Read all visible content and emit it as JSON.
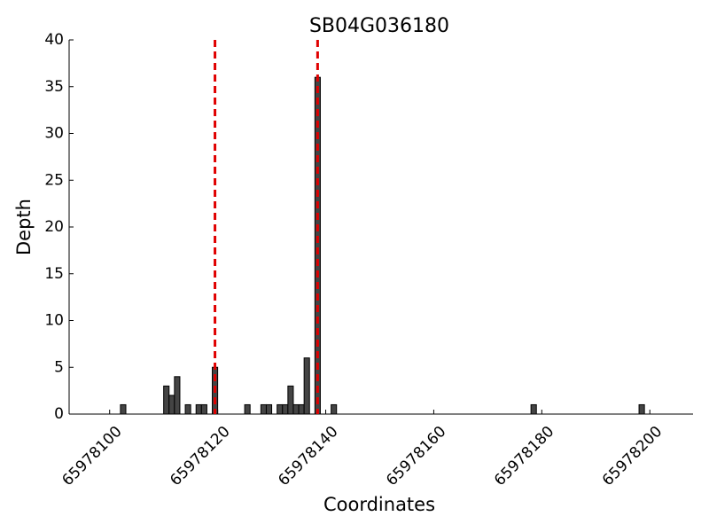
{
  "chart_data": {
    "type": "bar",
    "title": "SB04G036180",
    "x_label": "Coordinates",
    "y_label": "Depth",
    "x": [
      65978102,
      65978110,
      65978111,
      65978112,
      65978114,
      65978116,
      65978117,
      65978119,
      65978125,
      65978128,
      65978129,
      65978131,
      65978132,
      65978133,
      65978134,
      65978135,
      65978136,
      65978138,
      65978141,
      65978178,
      65978198
    ],
    "values": [
      1,
      3,
      2,
      4,
      1,
      1,
      1,
      5,
      1,
      1,
      1,
      1,
      1,
      3,
      1,
      1,
      6,
      36,
      1,
      1,
      1
    ],
    "color": "#444444",
    "vlines": [
      65978119.5,
      65978138.5
    ],
    "vline_color": "#e00000",
    "xlim": [
      65978092.5,
      65978208
    ],
    "xticks": [
      65978100,
      65978120,
      65978140,
      65978160,
      65978180,
      65978200
    ],
    "ylim": [
      0,
      40
    ],
    "yticks": [
      0,
      5,
      10,
      15,
      20,
      25,
      30,
      35,
      40
    ]
  }
}
